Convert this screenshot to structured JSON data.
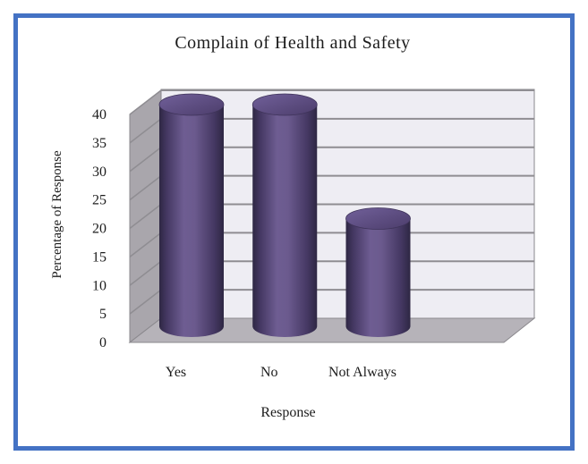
{
  "page": {
    "background": "#ffffff",
    "frame_border_color": "#4472C4"
  },
  "chart_data": {
    "type": "bar",
    "style": "3d-cylinder",
    "title": "Complain of Health and Safety",
    "xlabel": "Response",
    "ylabel": "Percentage of Response",
    "categories": [
      "Yes",
      "No",
      "Not Always"
    ],
    "values": [
      40,
      40,
      20
    ],
    "ylim": [
      0,
      40
    ],
    "ytick_step": 5,
    "yticks": [
      0,
      5,
      10,
      15,
      20,
      25,
      30,
      35,
      40
    ],
    "grid": true,
    "legend": false,
    "colors": {
      "back_wall": "#EEEDF3",
      "side_wall": "#A9A6AC",
      "floor": "#B6B3B9",
      "wall_outline": "#8A888D",
      "gridline": "#8F8D92",
      "text": "#1c1c1c",
      "bar_body_gradient": [
        "#2E2743",
        "#453863",
        "#6E5D92",
        "#6B5A8E",
        "#453863",
        "#2E2743"
      ],
      "bar_top_gradient": [
        "#71609A",
        "#4C3D6B"
      ],
      "bar_top_outline": "#3E3359"
    }
  }
}
